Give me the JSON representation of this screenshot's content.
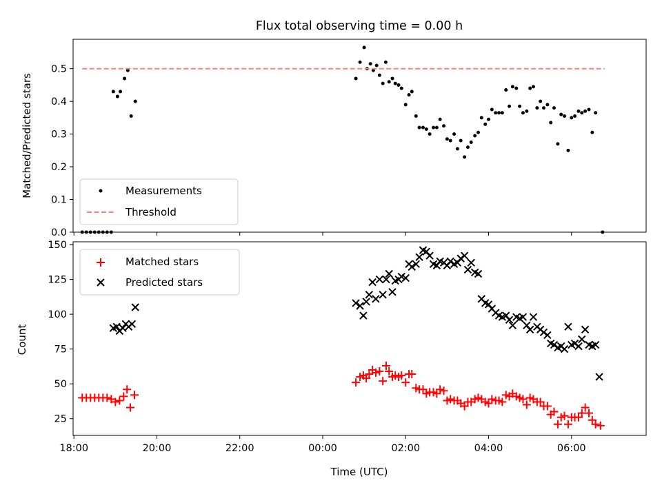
{
  "figure": {
    "title": "Flux total observing time = 0.00 h",
    "xlabel": "Time (UTC)",
    "x_ticks": [
      {
        "v": 18,
        "label": "18:00"
      },
      {
        "v": 20,
        "label": "20:00"
      },
      {
        "v": 22,
        "label": "22:00"
      },
      {
        "v": 24,
        "label": "00:00"
      },
      {
        "v": 26,
        "label": "02:00"
      },
      {
        "v": 28,
        "label": "04:00"
      },
      {
        "v": 30,
        "label": "06:00"
      }
    ]
  },
  "chart_data": [
    {
      "type": "scatter",
      "title": "Flux total observing time = 0.00 h",
      "ylabel": "Matched/Predicted stars",
      "xlabel": "",
      "x_unit": "hours since 18:00 previous day shown as clock time",
      "xlim": [
        17.98,
        31.8
      ],
      "ylim": [
        0,
        0.59
      ],
      "y_ticks": [
        0,
        0.1,
        0.2,
        0.3,
        0.4,
        0.5
      ],
      "y_tick_labels": [
        "0.0",
        "0.1",
        "0.2",
        "0.3",
        "0.4",
        "0.5"
      ],
      "legend_position": "lower-left",
      "series": [
        {
          "name": "Measurements",
          "marker": "dot",
          "color": "#000000",
          "points": [
            [
              18.2,
              0
            ],
            [
              18.3,
              0
            ],
            [
              18.4,
              0
            ],
            [
              18.5,
              0
            ],
            [
              18.6,
              0
            ],
            [
              18.7,
              0
            ],
            [
              18.8,
              0
            ],
            [
              18.9,
              0
            ],
            [
              18.95,
              0.43
            ],
            [
              19.05,
              0.415
            ],
            [
              19.12,
              0.43
            ],
            [
              19.22,
              0.47
            ],
            [
              19.3,
              0.495
            ],
            [
              19.38,
              0.355
            ],
            [
              19.48,
              0.4
            ],
            [
              24.8,
              0.47
            ],
            [
              24.9,
              0.52
            ],
            [
              25.0,
              0.565
            ],
            [
              25.07,
              0.5
            ],
            [
              25.15,
              0.515
            ],
            [
              25.22,
              0.495
            ],
            [
              25.3,
              0.51
            ],
            [
              25.37,
              0.48
            ],
            [
              25.45,
              0.455
            ],
            [
              25.52,
              0.52
            ],
            [
              25.6,
              0.46
            ],
            [
              25.68,
              0.47
            ],
            [
              25.75,
              0.455
            ],
            [
              25.83,
              0.45
            ],
            [
              25.9,
              0.44
            ],
            [
              26.0,
              0.39
            ],
            [
              26.08,
              0.42
            ],
            [
              26.15,
              0.43
            ],
            [
              26.25,
              0.355
            ],
            [
              26.33,
              0.32
            ],
            [
              26.42,
              0.32
            ],
            [
              26.5,
              0.315
            ],
            [
              26.58,
              0.3
            ],
            [
              26.67,
              0.32
            ],
            [
              26.75,
              0.32
            ],
            [
              26.83,
              0.345
            ],
            [
              26.92,
              0.325
            ],
            [
              27.0,
              0.285
            ],
            [
              27.08,
              0.28
            ],
            [
              27.17,
              0.3
            ],
            [
              27.25,
              0.255
            ],
            [
              27.33,
              0.28
            ],
            [
              27.42,
              0.23
            ],
            [
              27.5,
              0.26
            ],
            [
              27.58,
              0.275
            ],
            [
              27.67,
              0.295
            ],
            [
              27.75,
              0.305
            ],
            [
              27.83,
              0.35
            ],
            [
              27.92,
              0.33
            ],
            [
              28.0,
              0.345
            ],
            [
              28.08,
              0.375
            ],
            [
              28.17,
              0.365
            ],
            [
              28.25,
              0.365
            ],
            [
              28.33,
              0.365
            ],
            [
              28.42,
              0.435
            ],
            [
              28.5,
              0.385
            ],
            [
              28.58,
              0.445
            ],
            [
              28.67,
              0.44
            ],
            [
              28.75,
              0.385
            ],
            [
              28.83,
              0.365
            ],
            [
              28.92,
              0.37
            ],
            [
              29.0,
              0.44
            ],
            [
              29.08,
              0.445
            ],
            [
              29.17,
              0.38
            ],
            [
              29.25,
              0.4
            ],
            [
              29.33,
              0.38
            ],
            [
              29.42,
              0.39
            ],
            [
              29.5,
              0.335
            ],
            [
              29.58,
              0.38
            ],
            [
              29.67,
              0.27
            ],
            [
              29.75,
              0.36
            ],
            [
              29.83,
              0.355
            ],
            [
              29.92,
              0.25
            ],
            [
              30.0,
              0.35
            ],
            [
              30.08,
              0.355
            ],
            [
              30.17,
              0.37
            ],
            [
              30.25,
              0.365
            ],
            [
              30.33,
              0.37
            ],
            [
              30.42,
              0.375
            ],
            [
              30.5,
              0.305
            ],
            [
              30.58,
              0.365
            ],
            [
              30.75,
              0
            ]
          ]
        },
        {
          "name": "Threshold",
          "line_style": "dashed",
          "color": "#ff7f7f",
          "points": [
            [
              18.2,
              0.5
            ],
            [
              30.8,
              0.5
            ]
          ]
        }
      ]
    },
    {
      "type": "scatter",
      "title": "",
      "ylabel": "Count",
      "xlabel": "Time (UTC)",
      "xlim": [
        17.98,
        31.8
      ],
      "ylim": [
        13,
        152
      ],
      "y_ticks": [
        25,
        50,
        75,
        100,
        125,
        150
      ],
      "y_tick_labels": [
        "25",
        "50",
        "75",
        "100",
        "125",
        "150"
      ],
      "legend_position": "upper-left",
      "series": [
        {
          "name": "Matched stars",
          "marker": "plus",
          "color": "#ff0000",
          "points": [
            [
              18.2,
              40
            ],
            [
              18.3,
              40
            ],
            [
              18.4,
              40
            ],
            [
              18.5,
              40
            ],
            [
              18.6,
              40
            ],
            [
              18.7,
              40
            ],
            [
              18.8,
              40
            ],
            [
              18.9,
              39
            ],
            [
              19.0,
              37
            ],
            [
              19.1,
              38
            ],
            [
              19.2,
              41
            ],
            [
              19.28,
              46
            ],
            [
              19.36,
              33
            ],
            [
              19.46,
              42
            ],
            [
              24.8,
              51
            ],
            [
              24.9,
              55
            ],
            [
              24.98,
              56
            ],
            [
              25.05,
              54
            ],
            [
              25.12,
              57
            ],
            [
              25.2,
              60
            ],
            [
              25.28,
              58
            ],
            [
              25.37,
              59
            ],
            [
              25.45,
              52
            ],
            [
              25.53,
              63
            ],
            [
              25.6,
              59
            ],
            [
              25.68,
              55
            ],
            [
              25.75,
              56
            ],
            [
              25.83,
              55
            ],
            [
              25.9,
              56
            ],
            [
              26.0,
              51
            ],
            [
              26.08,
              57
            ],
            [
              26.15,
              57
            ],
            [
              26.25,
              47
            ],
            [
              26.33,
              46
            ],
            [
              26.42,
              46
            ],
            [
              26.5,
              43
            ],
            [
              26.58,
              44
            ],
            [
              26.67,
              44
            ],
            [
              26.75,
              43
            ],
            [
              26.83,
              46
            ],
            [
              26.92,
              45
            ],
            [
              27.0,
              38
            ],
            [
              27.08,
              39
            ],
            [
              27.17,
              38
            ],
            [
              27.25,
              38
            ],
            [
              27.33,
              36
            ],
            [
              27.42,
              34
            ],
            [
              27.5,
              37
            ],
            [
              27.58,
              37
            ],
            [
              27.67,
              39
            ],
            [
              27.75,
              40
            ],
            [
              27.83,
              39
            ],
            [
              27.92,
              37
            ],
            [
              28.0,
              36
            ],
            [
              28.08,
              39
            ],
            [
              28.17,
              38
            ],
            [
              28.25,
              38
            ],
            [
              28.33,
              37
            ],
            [
              28.42,
              42
            ],
            [
              28.5,
              41
            ],
            [
              28.58,
              43
            ],
            [
              28.67,
              41
            ],
            [
              28.75,
              40
            ],
            [
              28.83,
              39
            ],
            [
              28.92,
              35
            ],
            [
              29.0,
              40
            ],
            [
              29.08,
              39
            ],
            [
              29.17,
              37
            ],
            [
              29.25,
              37
            ],
            [
              29.33,
              34
            ],
            [
              29.42,
              34
            ],
            [
              29.5,
              28
            ],
            [
              29.58,
              30
            ],
            [
              29.67,
              21
            ],
            [
              29.75,
              26
            ],
            [
              29.83,
              27
            ],
            [
              29.92,
              21
            ],
            [
              30.0,
              26
            ],
            [
              30.08,
              26
            ],
            [
              30.17,
              26
            ],
            [
              30.25,
              29
            ],
            [
              30.33,
              33
            ],
            [
              30.42,
              29
            ],
            [
              30.5,
              24
            ],
            [
              30.58,
              21
            ],
            [
              30.7,
              20
            ]
          ]
        },
        {
          "name": "Predicted stars",
          "marker": "x",
          "color": "#000000",
          "points": [
            [
              18.95,
              90
            ],
            [
              19.03,
              91
            ],
            [
              19.1,
              88
            ],
            [
              19.18,
              90
            ],
            [
              19.25,
              93
            ],
            [
              19.32,
              91
            ],
            [
              19.4,
              93
            ],
            [
              19.48,
              105
            ],
            [
              24.8,
              108
            ],
            [
              24.9,
              106
            ],
            [
              24.98,
              99
            ],
            [
              25.05,
              109
            ],
            [
              25.12,
              114
            ],
            [
              25.2,
              123
            ],
            [
              25.28,
              111
            ],
            [
              25.37,
              125
            ],
            [
              25.45,
              114
            ],
            [
              25.53,
              125
            ],
            [
              25.6,
              129
            ],
            [
              25.68,
              116
            ],
            [
              25.75,
              124
            ],
            [
              25.83,
              125
            ],
            [
              25.9,
              127
            ],
            [
              26.0,
              126
            ],
            [
              26.08,
              136
            ],
            [
              26.15,
              134
            ],
            [
              26.25,
              136
            ],
            [
              26.33,
              141
            ],
            [
              26.42,
              146
            ],
            [
              26.5,
              145
            ],
            [
              26.58,
              142
            ],
            [
              26.67,
              136
            ],
            [
              26.75,
              135
            ],
            [
              26.83,
              138
            ],
            [
              26.92,
              137
            ],
            [
              27.0,
              135
            ],
            [
              27.08,
              138
            ],
            [
              27.17,
              136
            ],
            [
              27.25,
              137
            ],
            [
              27.33,
              140
            ],
            [
              27.42,
              142
            ],
            [
              27.5,
              132
            ],
            [
              27.58,
              137
            ],
            [
              27.67,
              130
            ],
            [
              27.75,
              129
            ],
            [
              27.83,
              111
            ],
            [
              27.92,
              108
            ],
            [
              28.0,
              107
            ],
            [
              28.08,
              104
            ],
            [
              28.17,
              101
            ],
            [
              28.25,
              99
            ],
            [
              28.33,
              98
            ],
            [
              28.42,
              99
            ],
            [
              28.5,
              96
            ],
            [
              28.58,
              92
            ],
            [
              28.67,
              98
            ],
            [
              28.75,
              97
            ],
            [
              28.83,
              98
            ],
            [
              28.92,
              92
            ],
            [
              29.0,
              89
            ],
            [
              29.08,
              98
            ],
            [
              29.17,
              91
            ],
            [
              29.25,
              89
            ],
            [
              29.33,
              87
            ],
            [
              29.42,
              85
            ],
            [
              29.5,
              79
            ],
            [
              29.58,
              78
            ],
            [
              29.67,
              76
            ],
            [
              29.75,
              77
            ],
            [
              29.83,
              75
            ],
            [
              29.92,
              91
            ],
            [
              30.0,
              78
            ],
            [
              30.08,
              79
            ],
            [
              30.17,
              77
            ],
            [
              30.25,
              82
            ],
            [
              30.33,
              89
            ],
            [
              30.42,
              78
            ],
            [
              30.5,
              77
            ],
            [
              30.58,
              78
            ],
            [
              30.67,
              55
            ]
          ]
        }
      ]
    }
  ]
}
